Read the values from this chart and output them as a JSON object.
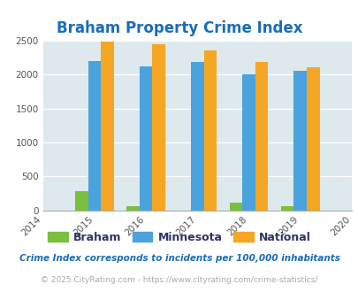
{
  "title": "Braham Property Crime Index",
  "years": [
    2015,
    2016,
    2017,
    2018,
    2019
  ],
  "braham": [
    280,
    55,
    0,
    115,
    60
  ],
  "minnesota": [
    2200,
    2120,
    2185,
    2000,
    2060
  ],
  "national": [
    2490,
    2450,
    2360,
    2195,
    2105
  ],
  "braham_color": "#7bbf3e",
  "minnesota_color": "#4aa3df",
  "national_color": "#f5a623",
  "xlim": [
    2014,
    2020
  ],
  "ylim": [
    0,
    2500
  ],
  "yticks": [
    0,
    500,
    1000,
    1500,
    2000,
    2500
  ],
  "bg_color": "#dde9ed",
  "title_color": "#1a6db5",
  "legend_labels": [
    "Braham",
    "Minnesota",
    "National"
  ],
  "legend_text_color": "#333366",
  "footnote1": "Crime Index corresponds to incidents per 100,000 inhabitants",
  "footnote2": "© 2025 CityRating.com - https://www.cityrating.com/crime-statistics/",
  "footnote1_color": "#1a6db5",
  "footnote2_color": "#aaaaaa"
}
